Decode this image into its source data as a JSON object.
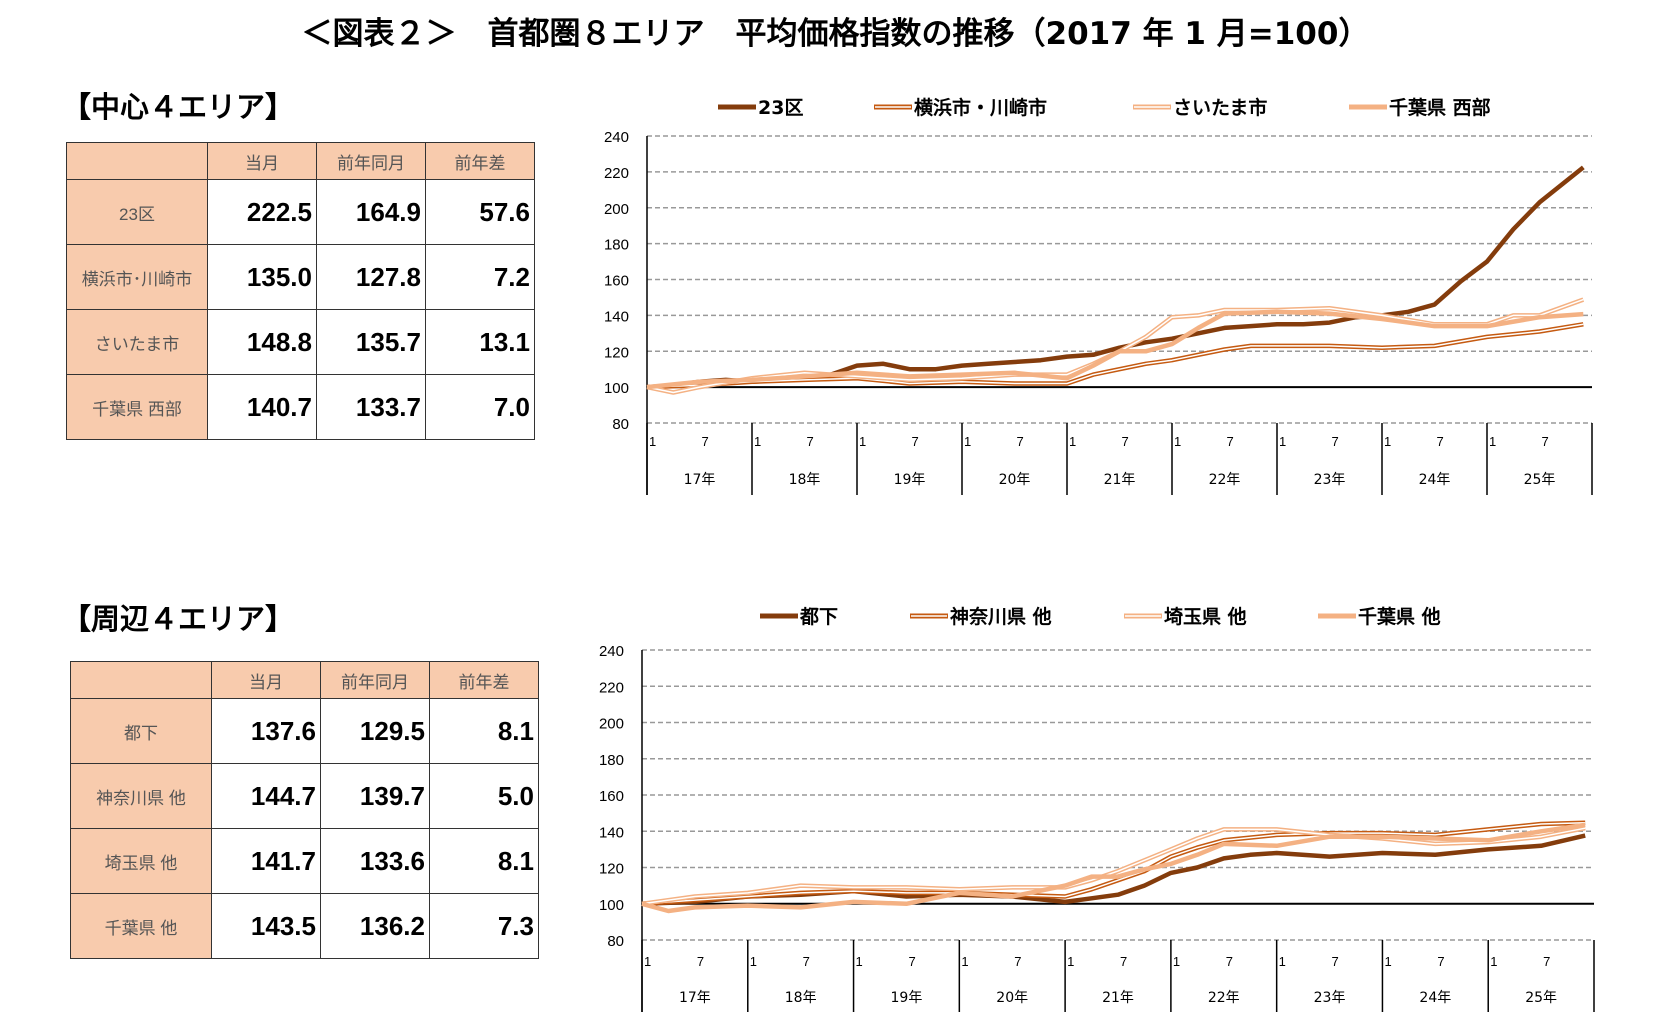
{
  "title": "＜図表２＞　首都圏８エリア　平均価格指数の推移（2017 年 1 月=100）",
  "sections": [
    {
      "label": "【中心４エリア】",
      "table": {
        "headers": [
          "",
          "当月",
          "前年同月",
          "前年差"
        ],
        "rows": [
          {
            "name": "23区",
            "values": [
              "222.5",
              "164.9",
              "57.6"
            ]
          },
          {
            "name": "横浜市･川崎市",
            "values": [
              "135.0",
              "127.8",
              "7.2"
            ]
          },
          {
            "name": "さいたま市",
            "values": [
              "148.8",
              "135.7",
              "13.1"
            ]
          },
          {
            "name": "千葉県 西部",
            "values": [
              "140.7",
              "133.7",
              "7.0"
            ]
          }
        ]
      }
    },
    {
      "label": "【周辺４エリア】",
      "table": {
        "headers": [
          "",
          "当月",
          "前年同月",
          "前年差"
        ],
        "rows": [
          {
            "name": "都下",
            "values": [
              "137.6",
              "129.5",
              "8.1"
            ]
          },
          {
            "name": "神奈川県 他",
            "values": [
              "144.7",
              "139.7",
              "5.0"
            ]
          },
          {
            "name": "埼玉県 他",
            "values": [
              "141.7",
              "133.6",
              "8.1"
            ]
          },
          {
            "name": "千葉県 他",
            "values": [
              "143.5",
              "136.2",
              "7.3"
            ]
          }
        ]
      }
    }
  ],
  "chart_data": [
    {
      "type": "line",
      "ylim": [
        80,
        240
      ],
      "yticks": [
        80,
        100,
        120,
        140,
        160,
        180,
        200,
        220,
        240
      ],
      "grid": "dashed horizontal",
      "reference_line": 100,
      "legend": "top",
      "month_ticks": [
        "1",
        "7"
      ],
      "year_labels": [
        "17年",
        "18年",
        "19年",
        "20年",
        "21年",
        "22年",
        "23年",
        "24年",
        "25年"
      ],
      "series": [
        {
          "name": "23区",
          "color": "#843C0C",
          "style": "solid-thick",
          "x": [
            "2017-01",
            "2017-04",
            "2017-07",
            "2017-10",
            "2018-01",
            "2018-04",
            "2018-07",
            "2018-10",
            "2019-01",
            "2019-04",
            "2019-07",
            "2019-10",
            "2020-01",
            "2020-04",
            "2020-07",
            "2020-10",
            "2021-01",
            "2021-04",
            "2021-07",
            "2021-10",
            "2022-01",
            "2022-04",
            "2022-07",
            "2022-10",
            "2023-01",
            "2023-04",
            "2023-07",
            "2023-10",
            "2024-01",
            "2024-04",
            "2024-07",
            "2024-10",
            "2025-01",
            "2025-04",
            "2025-07",
            "2025-12"
          ],
          "y": [
            100,
            101,
            103,
            104,
            103,
            104,
            105,
            107,
            112,
            113,
            110,
            110,
            112,
            113,
            114,
            115,
            117,
            118,
            122,
            125,
            127,
            130,
            133,
            134,
            135,
            135,
            136,
            139,
            140,
            142,
            146,
            159,
            170,
            188,
            203,
            222.5
          ]
        },
        {
          "name": "横浜市・川崎市",
          "color": "#C55A11",
          "style": "double",
          "x": [
            "2017-01",
            "2017-07",
            "2018-01",
            "2018-07",
            "2019-01",
            "2019-07",
            "2020-01",
            "2020-07",
            "2021-01",
            "2021-04",
            "2021-07",
            "2021-10",
            "2022-01",
            "2022-04",
            "2022-07",
            "2022-10",
            "2023-01",
            "2023-07",
            "2024-01",
            "2024-07",
            "2025-01",
            "2025-07",
            "2025-12"
          ],
          "y": [
            100,
            101,
            103,
            104,
            105,
            102,
            103,
            102,
            102,
            107,
            110,
            113,
            115,
            118,
            121,
            123,
            123,
            123,
            122,
            123,
            128,
            131,
            135
          ]
        },
        {
          "name": "さいたま市",
          "color": "#F4B183",
          "style": "double",
          "x": [
            "2017-01",
            "2017-04",
            "2017-07",
            "2018-01",
            "2018-07",
            "2019-01",
            "2019-07",
            "2020-01",
            "2020-07",
            "2021-01",
            "2021-04",
            "2021-07",
            "2021-10",
            "2022-01",
            "2022-04",
            "2022-07",
            "2023-01",
            "2023-07",
            "2024-01",
            "2024-07",
            "2025-01",
            "2025-04",
            "2025-07",
            "2025-12"
          ],
          "y": [
            100,
            97,
            100,
            105,
            108,
            106,
            104,
            105,
            107,
            107,
            113,
            120,
            128,
            139,
            140,
            143,
            143,
            144,
            140,
            135,
            135,
            140,
            140,
            148.8
          ]
        },
        {
          "name": "千葉県 西部",
          "color": "#F4B183",
          "style": "solid-thick",
          "x": [
            "2017-01",
            "2017-07",
            "2018-01",
            "2018-07",
            "2019-01",
            "2019-07",
            "2020-01",
            "2020-07",
            "2021-01",
            "2021-04",
            "2021-07",
            "2021-10",
            "2022-01",
            "2022-04",
            "2022-07",
            "2023-01",
            "2023-07",
            "2024-01",
            "2024-07",
            "2025-01",
            "2025-07",
            "2025-12"
          ],
          "y": [
            100,
            103,
            104,
            106,
            108,
            106,
            107,
            108,
            105,
            112,
            120,
            120,
            124,
            133,
            141,
            142,
            141,
            138,
            134,
            134,
            139,
            140.7
          ]
        }
      ]
    },
    {
      "type": "line",
      "ylim": [
        80,
        240
      ],
      "yticks": [
        80,
        100,
        120,
        140,
        160,
        180,
        200,
        220,
        240
      ],
      "grid": "dashed horizontal",
      "reference_line": 100,
      "legend": "top",
      "month_ticks": [
        "1",
        "7"
      ],
      "year_labels": [
        "17年",
        "18年",
        "19年",
        "20年",
        "21年",
        "22年",
        "23年",
        "24年",
        "25年"
      ],
      "series": [
        {
          "name": "都下",
          "color": "#843C0C",
          "style": "solid-thick",
          "x": [
            "2017-01",
            "2017-07",
            "2018-01",
            "2018-07",
            "2019-01",
            "2019-07",
            "2020-01",
            "2020-07",
            "2021-01",
            "2021-04",
            "2021-07",
            "2021-10",
            "2022-01",
            "2022-04",
            "2022-07",
            "2022-10",
            "2023-01",
            "2023-07",
            "2024-01",
            "2024-07",
            "2025-01",
            "2025-07",
            "2025-12"
          ],
          "y": [
            100,
            101,
            104,
            105,
            107,
            104,
            105,
            104,
            101,
            103,
            105,
            110,
            117,
            120,
            125,
            127,
            128,
            126,
            128,
            127,
            130,
            132,
            137.6
          ]
        },
        {
          "name": "神奈川県 他",
          "color": "#C55A11",
          "style": "double",
          "x": [
            "2017-01",
            "2017-07",
            "2018-01",
            "2018-07",
            "2019-01",
            "2019-07",
            "2020-01",
            "2020-07",
            "2021-01",
            "2021-04",
            "2021-07",
            "2021-10",
            "2022-01",
            "2022-04",
            "2022-07",
            "2023-01",
            "2023-07",
            "2024-01",
            "2024-07",
            "2025-01",
            "2025-07",
            "2025-12"
          ],
          "y": [
            100,
            102,
            104,
            106,
            107,
            106,
            106,
            105,
            104,
            108,
            113,
            118,
            126,
            131,
            135,
            138,
            139,
            139,
            138,
            141,
            144,
            144.7
          ]
        },
        {
          "name": "埼玉県 他",
          "color": "#F4B183",
          "style": "double",
          "x": [
            "2017-01",
            "2017-07",
            "2018-01",
            "2018-07",
            "2019-01",
            "2019-07",
            "2020-01",
            "2020-07",
            "2021-01",
            "2021-04",
            "2021-07",
            "2021-10",
            "2022-01",
            "2022-04",
            "2022-07",
            "2023-01",
            "2023-07",
            "2024-01",
            "2024-07",
            "2025-01",
            "2025-07",
            "2025-12"
          ],
          "y": [
            100,
            104,
            106,
            110,
            109,
            109,
            108,
            109,
            109,
            113,
            118,
            124,
            130,
            136,
            141,
            141,
            138,
            136,
            133,
            134,
            137,
            141.7
          ]
        },
        {
          "name": "千葉県 他",
          "color": "#F4B183",
          "style": "solid-thick",
          "x": [
            "2017-01",
            "2017-04",
            "2017-07",
            "2018-01",
            "2018-07",
            "2019-01",
            "2019-07",
            "2020-01",
            "2020-07",
            "2021-01",
            "2021-04",
            "2021-07",
            "2021-10",
            "2022-01",
            "2022-04",
            "2022-07",
            "2023-01",
            "2023-07",
            "2024-01",
            "2024-07",
            "2025-01",
            "2025-07",
            "2025-12"
          ],
          "y": [
            100,
            96,
            98,
            99,
            98,
            101,
            100,
            106,
            104,
            110,
            115,
            115,
            119,
            122,
            127,
            133,
            132,
            137,
            137,
            136,
            135,
            140,
            143.5
          ]
        }
      ]
    }
  ]
}
